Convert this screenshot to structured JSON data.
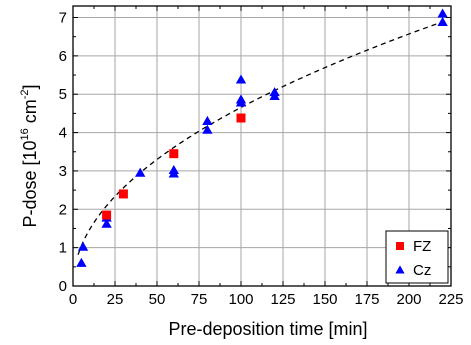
{
  "chart_data": {
    "type": "scatter",
    "title": "",
    "xlabel": "Pre-deposition time [min]",
    "ylabel": {
      "main": "P-dose [10",
      "exp1": "16",
      "mid": " cm",
      "exp2": "-2",
      "end": "]"
    },
    "xlim": [
      0,
      225
    ],
    "ylim": [
      0,
      7.3
    ],
    "xticks": [
      0,
      25,
      50,
      75,
      100,
      125,
      150,
      175,
      200,
      225
    ],
    "yticks": [
      0,
      1,
      2,
      3,
      4,
      5,
      6,
      7
    ],
    "grid": true,
    "legend_position": "bottom-right",
    "series": [
      {
        "name": "FZ",
        "marker": "square",
        "color": "#ff0000",
        "points": [
          {
            "x": 20,
            "y": 1.85
          },
          {
            "x": 30,
            "y": 2.4
          },
          {
            "x": 60,
            "y": 3.45
          },
          {
            "x": 100,
            "y": 4.38
          }
        ]
      },
      {
        "name": "Cz",
        "marker": "triangle",
        "color": "#0000ff",
        "points": [
          {
            "x": 5,
            "y": 0.6
          },
          {
            "x": 6,
            "y": 1.02
          },
          {
            "x": 20,
            "y": 1.62
          },
          {
            "x": 20,
            "y": 1.78
          },
          {
            "x": 40,
            "y": 2.95
          },
          {
            "x": 60,
            "y": 2.93
          },
          {
            "x": 60,
            "y": 3.02
          },
          {
            "x": 80,
            "y": 4.07
          },
          {
            "x": 80,
            "y": 4.3
          },
          {
            "x": 100,
            "y": 4.78
          },
          {
            "x": 100,
            "y": 4.86
          },
          {
            "x": 100,
            "y": 5.38
          },
          {
            "x": 120,
            "y": 4.95
          },
          {
            "x": 120,
            "y": 5.05
          },
          {
            "x": 220,
            "y": 6.88
          },
          {
            "x": 220,
            "y": 7.1
          }
        ]
      }
    ],
    "fit": {
      "style": "dashed",
      "color": "#000000",
      "equation": "y = a * x^b",
      "a": 0.472,
      "b": 0.497,
      "x_range": [
        3,
        222
      ]
    }
  }
}
